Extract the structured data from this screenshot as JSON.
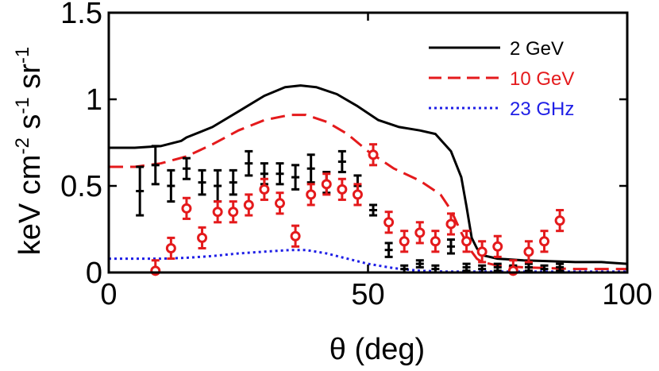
{
  "chart_data": {
    "type": "scatter",
    "title": "",
    "xlabel": "θ (deg)",
    "ylabel_parts": {
      "base": "keV cm",
      "exp1": "-2",
      "mid": " s",
      "exp2": "-1",
      "tail": " sr",
      "exp3": "-1"
    },
    "xlim": [
      0,
      100
    ],
    "ylim": [
      0,
      1.5
    ],
    "xticks": [
      0,
      50,
      100
    ],
    "xtick_labels": [
      "0",
      "50",
      "100"
    ],
    "yticks": [
      0,
      0.5,
      1,
      1.5
    ],
    "ytick_labels": [
      "0",
      "0.5",
      "1",
      "1.5"
    ],
    "grid": false,
    "legend_position": "top-right",
    "colors": {
      "black": "#000000",
      "red": "#e41a1c",
      "blue": "#1f1fe6"
    },
    "series": [
      {
        "name": "2 GeV",
        "style": "solid",
        "color": "#000000",
        "x": [
          0,
          5,
          10,
          14,
          15,
          20,
          25,
          30,
          34,
          37,
          40,
          44,
          48,
          52,
          56,
          60,
          63,
          66,
          68,
          69,
          70,
          71,
          72,
          75,
          80,
          85,
          90,
          95,
          100
        ],
        "y": [
          0.72,
          0.72,
          0.73,
          0.76,
          0.78,
          0.84,
          0.93,
          1.02,
          1.07,
          1.08,
          1.07,
          1.03,
          0.96,
          0.88,
          0.84,
          0.82,
          0.8,
          0.7,
          0.55,
          0.38,
          0.2,
          0.14,
          0.1,
          0.08,
          0.07,
          0.065,
          0.06,
          0.06,
          0.05
        ]
      },
      {
        "name": "10 GeV",
        "style": "dashed",
        "color": "#e41a1c",
        "x": [
          0,
          5,
          10,
          15,
          20,
          25,
          30,
          35,
          38,
          42,
          46,
          50,
          55,
          60,
          64,
          66,
          68,
          70,
          71,
          72,
          75,
          80,
          85,
          90,
          100
        ],
        "y": [
          0.61,
          0.61,
          0.63,
          0.67,
          0.74,
          0.82,
          0.88,
          0.91,
          0.91,
          0.87,
          0.8,
          0.7,
          0.6,
          0.53,
          0.45,
          0.36,
          0.23,
          0.12,
          0.08,
          0.06,
          0.04,
          0.03,
          0.025,
          0.02,
          0.02
        ]
      },
      {
        "name": "23 GHz",
        "style": "dotted",
        "color": "#1f1fe6",
        "x": [
          0,
          5,
          10,
          15,
          20,
          25,
          30,
          35,
          38,
          42,
          46,
          50,
          55,
          60,
          65,
          70,
          80,
          90,
          100
        ],
        "y": [
          0.08,
          0.08,
          0.08,
          0.085,
          0.095,
          0.11,
          0.12,
          0.13,
          0.13,
          0.11,
          0.08,
          0.05,
          0.025,
          0.01,
          0.005,
          0.005,
          0.005,
          0.005,
          0.005
        ]
      },
      {
        "name": "",
        "style": "points-bar",
        "color": "#000000",
        "x": [
          6,
          9,
          12,
          15,
          18,
          21,
          24,
          27,
          30,
          33,
          36,
          39,
          42,
          45,
          48,
          51,
          54,
          57,
          60,
          63,
          66,
          69,
          72,
          75,
          78,
          81,
          84,
          87
        ],
        "y": [
          0.47,
          0.62,
          0.5,
          0.6,
          0.52,
          0.5,
          0.52,
          0.63,
          0.57,
          0.57,
          0.55,
          0.6,
          0.52,
          0.64,
          0.5,
          0.36,
          0.13,
          0.02,
          0.05,
          0.02,
          0.15,
          0.03,
          0.02,
          0.03,
          0.02,
          0.03,
          0.02,
          0.03
        ],
        "err": [
          0.14,
          0.11,
          0.09,
          0.06,
          0.07,
          0.09,
          0.07,
          0.07,
          0.06,
          0.06,
          0.07,
          0.08,
          0.06,
          0.06,
          0.06,
          0.03,
          0.04,
          0.02,
          0.02,
          0.02,
          0.04,
          0.02,
          0.02,
          0.02,
          0.02,
          0.02,
          0.02,
          0.02
        ]
      },
      {
        "name": "",
        "style": "points-circle",
        "color": "#e41a1c",
        "x": [
          9,
          12,
          15,
          18,
          21,
          24,
          27,
          30,
          33,
          36,
          39,
          42,
          45,
          48,
          51,
          54,
          57,
          60,
          63,
          66,
          69,
          72,
          75,
          78,
          81,
          84,
          87
        ],
        "y": [
          0.01,
          0.14,
          0.37,
          0.2,
          0.35,
          0.35,
          0.39,
          0.48,
          0.4,
          0.21,
          0.45,
          0.51,
          0.48,
          0.45,
          0.68,
          0.29,
          0.18,
          0.23,
          0.18,
          0.28,
          0.18,
          0.12,
          0.15,
          0.01,
          0.12,
          0.18,
          0.3
        ]
      }
    ]
  }
}
